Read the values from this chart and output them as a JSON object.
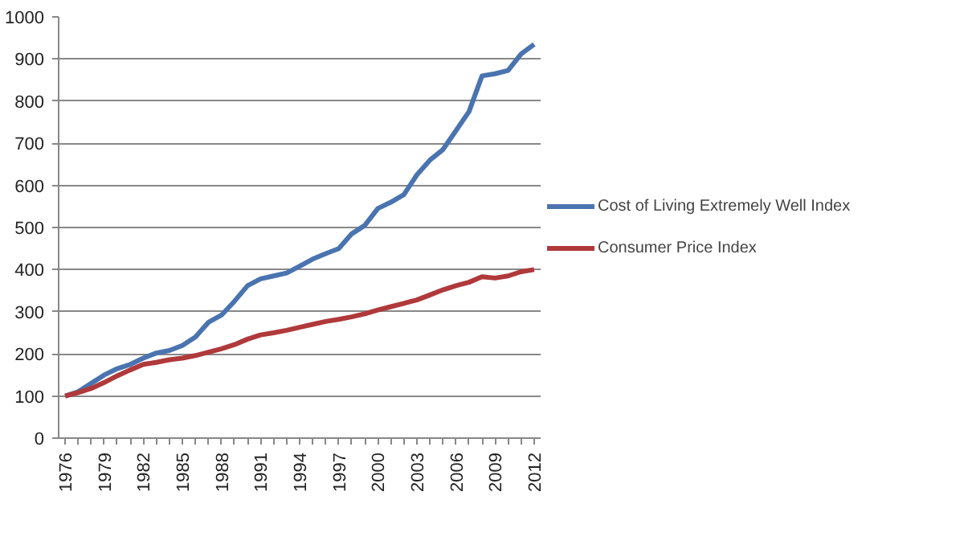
{
  "chart_data": {
    "type": "line",
    "categories": [
      "1976",
      null,
      null,
      "1979",
      null,
      null,
      "1982",
      null,
      null,
      "1985",
      null,
      null,
      "1988",
      null,
      null,
      "1991",
      null,
      null,
      "1994",
      null,
      null,
      "1997",
      null,
      null,
      "2000",
      null,
      null,
      "2003",
      null,
      null,
      "2006",
      null,
      null,
      "2009",
      null,
      null,
      "2012"
    ],
    "series": [
      {
        "name": "Cost of Living Extremely Well Index",
        "color": "#4a74b0",
        "values": [
          100,
          110,
          130,
          150,
          165,
          175,
          190,
          202,
          208,
          220,
          240,
          275,
          292,
          325,
          362,
          378,
          385,
          392,
          408,
          425,
          438,
          450,
          485,
          505,
          545,
          560,
          578,
          625,
          660,
          685,
          730,
          775,
          860,
          865,
          873,
          912,
          935
        ]
      },
      {
        "name": "Consumer Price Index",
        "color": "#b0393b",
        "values": [
          100,
          108,
          118,
          132,
          148,
          162,
          175,
          180,
          186,
          190,
          196,
          204,
          212,
          222,
          235,
          245,
          250,
          256,
          263,
          270,
          277,
          282,
          288,
          295,
          304,
          312,
          320,
          328,
          340,
          352,
          362,
          370,
          383,
          380,
          385,
          395,
          400
        ]
      }
    ],
    "ylim": [
      0,
      1000
    ],
    "yticks": [
      0,
      100,
      200,
      300,
      400,
      500,
      600,
      700,
      800,
      900,
      1000
    ],
    "grid": "y",
    "legend": "right",
    "marker": "none",
    "line_style": "solid"
  }
}
